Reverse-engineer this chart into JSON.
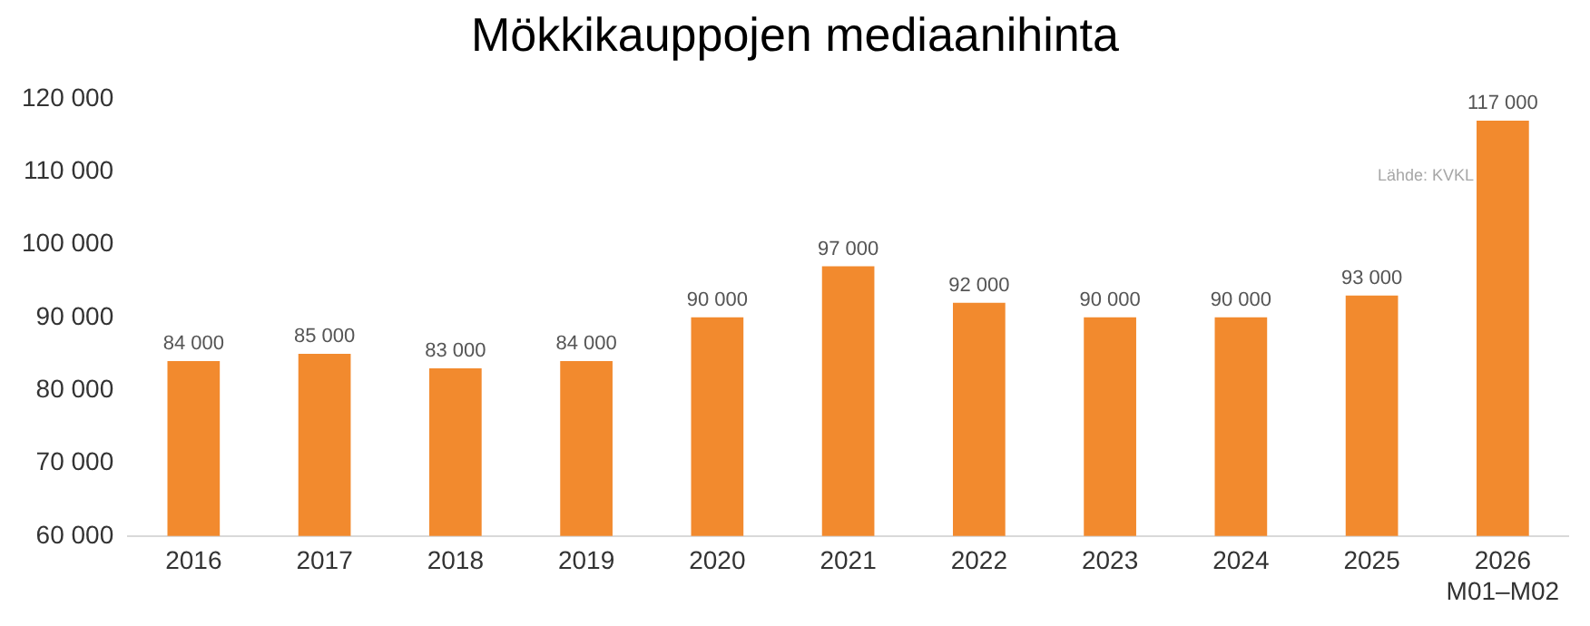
{
  "chart_data": {
    "type": "bar",
    "title": "Mökkikauppojen mediaanihinta",
    "categories": [
      "2016",
      "2017",
      "2018",
      "2019",
      "2020",
      "2021",
      "2022",
      "2023",
      "2024",
      "2025",
      "2026\nM01–M02"
    ],
    "values": [
      84000,
      85000,
      83000,
      84000,
      90000,
      97000,
      92000,
      90000,
      90000,
      93000,
      117000
    ],
    "value_labels": [
      "84 000",
      "85 000",
      "83 000",
      "84 000",
      "90 000",
      "97 000",
      "92 000",
      "90 000",
      "90 000",
      "93 000",
      "117 000"
    ],
    "color": "#f28a2e",
    "ylim": [
      60000,
      120000
    ],
    "yticks": [
      {
        "value": 60000,
        "label": "60 000"
      },
      {
        "value": 70000,
        "label": "70 000"
      },
      {
        "value": 80000,
        "label": "80 000"
      },
      {
        "value": 90000,
        "label": "90 000"
      },
      {
        "value": 100000,
        "label": "100 000"
      },
      {
        "value": 110000,
        "label": "110 000"
      },
      {
        "value": 120000,
        "label": "120 000"
      }
    ],
    "grid": false,
    "legend": false,
    "annotations": [
      "Lähde: KVKL"
    ]
  }
}
